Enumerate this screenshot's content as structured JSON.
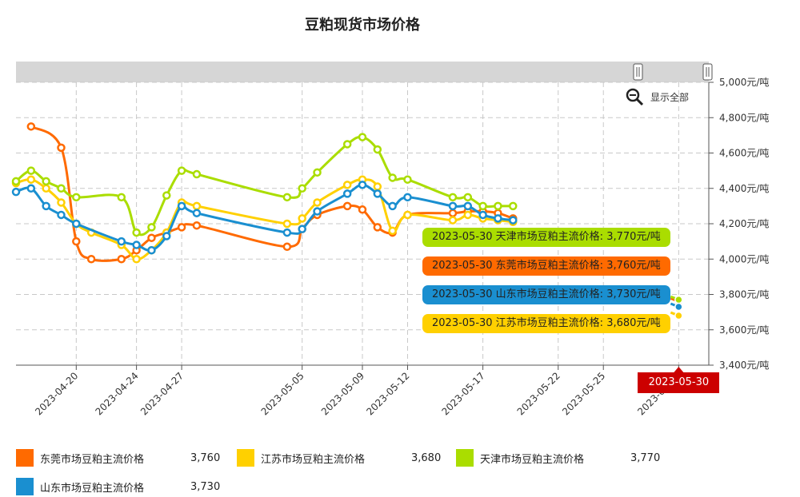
{
  "chart_data": {
    "type": "line",
    "title": "豆粕现货市场价格",
    "y_unit": "元/吨",
    "ylim": [
      3400,
      5000
    ],
    "y_ticks": [
      3400,
      3600,
      3800,
      4000,
      4200,
      4400,
      4600,
      4800,
      5000
    ],
    "y_tick_labels": [
      "3,400元/吨",
      "3,600元/吨",
      "3,800元/吨",
      "4,000元/吨",
      "4,200元/吨",
      "4,400元/吨",
      "4,600元/吨",
      "4,800元/吨",
      "5,000元/吨"
    ],
    "x_range": [
      "2023-04-16",
      "2023-06-01"
    ],
    "x_ticks": [
      "2023-04-20",
      "2023-04-24",
      "2023-04-27",
      "2023-05-05",
      "2023-05-09",
      "2023-05-12",
      "2023-05-17",
      "2023-05-22",
      "2023-05-25",
      "2023-05-30"
    ],
    "grid": true,
    "series": [
      {
        "name": "东莞市场豆粕主流价格",
        "color": "#ff6a00",
        "points": [
          [
            "2023-04-17",
            4750
          ],
          [
            "2023-04-19",
            4630
          ],
          [
            "2023-04-20",
            4100
          ],
          [
            "2023-04-21",
            4000
          ],
          [
            "2023-04-23",
            4000
          ],
          [
            "2023-04-24",
            4050
          ],
          [
            "2023-04-25",
            4120
          ],
          [
            "2023-04-26",
            4150
          ],
          [
            "2023-04-27",
            4180
          ],
          [
            "2023-04-28",
            4190
          ],
          [
            "2023-05-04",
            4070
          ],
          [
            "2023-05-05",
            4170
          ],
          [
            "2023-05-06",
            4250
          ],
          [
            "2023-05-08",
            4300
          ],
          [
            "2023-05-09",
            4280
          ],
          [
            "2023-05-10",
            4180
          ],
          [
            "2023-05-11",
            4150
          ],
          [
            "2023-05-12",
            4250
          ],
          [
            "2023-05-15",
            4260
          ],
          [
            "2023-05-16",
            4270
          ],
          [
            "2023-05-17",
            4270
          ],
          [
            "2023-05-18",
            4260
          ],
          [
            "2023-05-19",
            4230
          ],
          [
            "2023-05-30",
            3760
          ]
        ]
      },
      {
        "name": "江苏市场豆粕主流价格",
        "color": "#ffd000",
        "points": [
          [
            "2023-04-16",
            4430
          ],
          [
            "2023-04-17",
            4450
          ],
          [
            "2023-04-18",
            4400
          ],
          [
            "2023-04-19",
            4320
          ],
          [
            "2023-04-20",
            4200
          ],
          [
            "2023-04-21",
            4150
          ],
          [
            "2023-04-23",
            4080
          ],
          [
            "2023-04-24",
            4000
          ],
          [
            "2023-04-25",
            4050
          ],
          [
            "2023-04-26",
            4150
          ],
          [
            "2023-04-27",
            4320
          ],
          [
            "2023-04-28",
            4300
          ],
          [
            "2023-05-04",
            4200
          ],
          [
            "2023-05-05",
            4230
          ],
          [
            "2023-05-06",
            4320
          ],
          [
            "2023-05-08",
            4420
          ],
          [
            "2023-05-09",
            4450
          ],
          [
            "2023-05-10",
            4410
          ],
          [
            "2023-05-11",
            4160
          ],
          [
            "2023-05-12",
            4250
          ],
          [
            "2023-05-15",
            4220
          ],
          [
            "2023-05-16",
            4250
          ],
          [
            "2023-05-17",
            4230
          ],
          [
            "2023-05-18",
            4220
          ],
          [
            "2023-05-19",
            4210
          ],
          [
            "2023-05-30",
            3680
          ]
        ]
      },
      {
        "name": "天津市场豆粕主流价格",
        "color": "#aadd00",
        "points": [
          [
            "2023-04-16",
            4440
          ],
          [
            "2023-04-17",
            4500
          ],
          [
            "2023-04-18",
            4440
          ],
          [
            "2023-04-19",
            4400
          ],
          [
            "2023-04-20",
            4350
          ],
          [
            "2023-04-23",
            4350
          ],
          [
            "2023-04-24",
            4150
          ],
          [
            "2023-04-25",
            4180
          ],
          [
            "2023-04-26",
            4360
          ],
          [
            "2023-04-27",
            4500
          ],
          [
            "2023-04-28",
            4480
          ],
          [
            "2023-05-04",
            4350
          ],
          [
            "2023-05-05",
            4400
          ],
          [
            "2023-05-06",
            4490
          ],
          [
            "2023-05-08",
            4650
          ],
          [
            "2023-05-09",
            4690
          ],
          [
            "2023-05-10",
            4620
          ],
          [
            "2023-05-11",
            4460
          ],
          [
            "2023-05-12",
            4450
          ],
          [
            "2023-05-15",
            4350
          ],
          [
            "2023-05-16",
            4350
          ],
          [
            "2023-05-17",
            4300
          ],
          [
            "2023-05-18",
            4300
          ],
          [
            "2023-05-19",
            4300
          ],
          [
            "2023-05-30",
            3770
          ]
        ]
      },
      {
        "name": "山东市场豆粕主流价格",
        "color": "#1a8fd0",
        "points": [
          [
            "2023-04-16",
            4380
          ],
          [
            "2023-04-17",
            4400
          ],
          [
            "2023-04-18",
            4300
          ],
          [
            "2023-04-19",
            4250
          ],
          [
            "2023-04-20",
            4200
          ],
          [
            "2023-04-23",
            4100
          ],
          [
            "2023-04-24",
            4080
          ],
          [
            "2023-04-25",
            4050
          ],
          [
            "2023-04-26",
            4130
          ],
          [
            "2023-04-27",
            4300
          ],
          [
            "2023-04-28",
            4260
          ],
          [
            "2023-05-04",
            4150
          ],
          [
            "2023-05-05",
            4170
          ],
          [
            "2023-05-06",
            4270
          ],
          [
            "2023-05-08",
            4370
          ],
          [
            "2023-05-09",
            4420
          ],
          [
            "2023-05-10",
            4370
          ],
          [
            "2023-05-11",
            4300
          ],
          [
            "2023-05-12",
            4350
          ],
          [
            "2023-05-15",
            4300
          ],
          [
            "2023-05-16",
            4300
          ],
          [
            "2023-05-17",
            4250
          ],
          [
            "2023-05-18",
            4230
          ],
          [
            "2023-05-19",
            4220
          ],
          [
            "2023-05-30",
            3730
          ]
        ]
      }
    ]
  },
  "toolbar": {
    "show_all_label": "显示全部",
    "zoom_icon": "zoom-out-icon"
  },
  "tooltips": [
    {
      "text": "2023-05-30 天津市场豆粕主流价格: 3,770元/吨",
      "color": "#aadd00"
    },
    {
      "text": "2023-05-30 东莞市场豆粕主流价格: 3,760元/吨",
      "color": "#ff6a00"
    },
    {
      "text": "2023-05-30 山东市场豆粕主流价格: 3,730元/吨",
      "color": "#1a8fd0"
    },
    {
      "text": "2023-05-30 江苏市场豆粕主流价格: 3,680元/吨",
      "color": "#ffd000"
    }
  ],
  "crosshair_date": "2023-05-30",
  "legend": [
    {
      "name": "东莞市场豆粕主流价格",
      "value": "3,760",
      "color": "#ff6a00"
    },
    {
      "name": "江苏市场豆粕主流价格",
      "value": "3,680",
      "color": "#ffd000"
    },
    {
      "name": "天津市场豆粕主流价格",
      "value": "3,770",
      "color": "#aadd00"
    },
    {
      "name": "山东市场豆粕主流价格",
      "value": "3,730",
      "color": "#1a8fd0"
    }
  ]
}
